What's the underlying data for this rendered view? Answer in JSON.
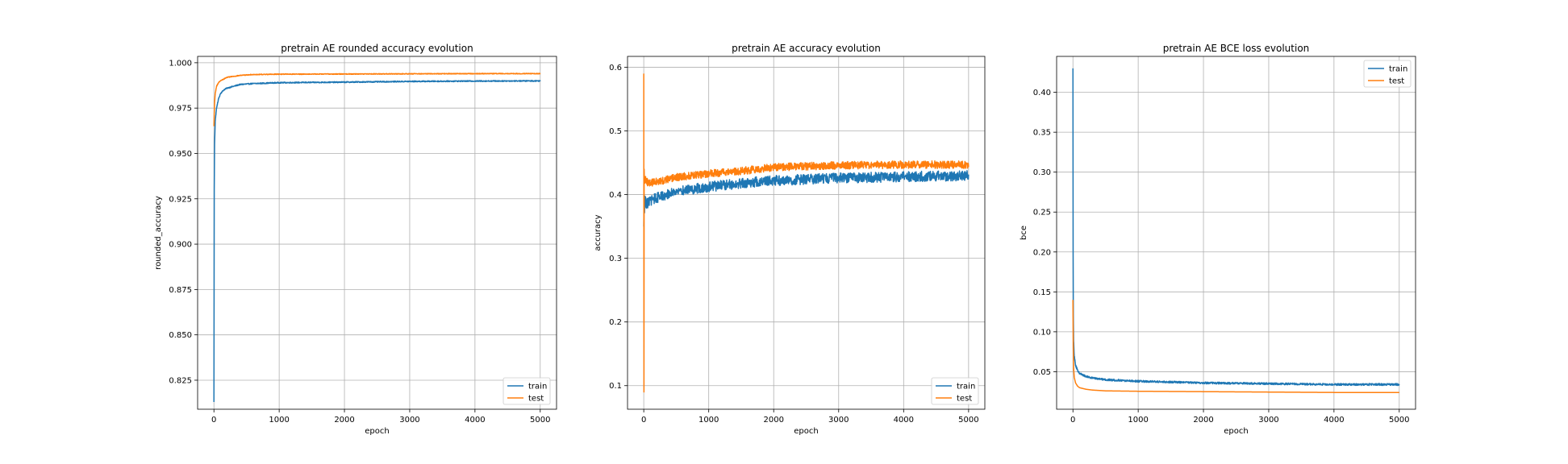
{
  "colors": {
    "train": "#1f77b4",
    "test": "#ff7f0e",
    "grid": "#b0b0b0"
  },
  "chart_data": [
    {
      "type": "line",
      "title": "pretrain AE rounded accuracy evolution",
      "xlabel": "epoch",
      "ylabel": "rounded_accuracy",
      "xlim": [
        -250,
        5250
      ],
      "ylim": [
        0.809,
        1.0035
      ],
      "xticks": [
        0,
        1000,
        2000,
        3000,
        4000,
        5000
      ],
      "yticks": [
        0.825,
        0.85,
        0.875,
        0.9,
        0.925,
        0.95,
        0.975,
        1.0
      ],
      "ytick_labels": [
        "0.825",
        "0.850",
        "0.875",
        "0.900",
        "0.925",
        "0.950",
        "0.975",
        "1.000"
      ],
      "grid": true,
      "legend": "lower-right",
      "series": [
        {
          "name": "train",
          "noise": 0.0003,
          "x": [
            0,
            5,
            10,
            20,
            40,
            70,
            100,
            150,
            200,
            300,
            400,
            600,
            1000,
            2000,
            3000,
            4000,
            5000
          ],
          "y": [
            0.813,
            0.93,
            0.955,
            0.968,
            0.975,
            0.98,
            0.983,
            0.985,
            0.986,
            0.987,
            0.988,
            0.9885,
            0.989,
            0.9893,
            0.9897,
            0.9899,
            0.99
          ]
        },
        {
          "name": "test",
          "noise": 0.0002,
          "x": [
            0,
            5,
            10,
            20,
            40,
            70,
            100,
            150,
            200,
            300,
            400,
            600,
            1000,
            2000,
            3000,
            4000,
            5000
          ],
          "y": [
            0.965,
            0.972,
            0.978,
            0.983,
            0.987,
            0.989,
            0.99,
            0.991,
            0.992,
            0.9925,
            0.993,
            0.9935,
            0.9937,
            0.9938,
            0.9939,
            0.994,
            0.994
          ]
        }
      ]
    },
    {
      "type": "line",
      "title": "pretrain AE accuracy evolution",
      "xlabel": "epoch",
      "ylabel": "accuracy",
      "xlim": [
        -250,
        5250
      ],
      "ylim": [
        0.063,
        0.617
      ],
      "xticks": [
        0,
        1000,
        2000,
        3000,
        4000,
        5000
      ],
      "yticks": [
        0.1,
        0.2,
        0.3,
        0.4,
        0.5,
        0.6
      ],
      "ytick_labels": [
        "0.1",
        "0.2",
        "0.3",
        "0.4",
        "0.5",
        "0.6"
      ],
      "grid": true,
      "legend": "lower-right",
      "series": [
        {
          "name": "train",
          "noise": 0.008,
          "x": [
            0,
            5,
            10,
            20,
            40,
            100,
            200,
            500,
            1000,
            1500,
            2000,
            3000,
            4000,
            5000
          ],
          "y": [
            0.35,
            0.4,
            0.375,
            0.39,
            0.385,
            0.39,
            0.395,
            0.405,
            0.412,
            0.418,
            0.422,
            0.426,
            0.428,
            0.43
          ]
        },
        {
          "name": "test",
          "noise": 0.006,
          "x": [
            0,
            3,
            6,
            10,
            20,
            50,
            100,
            200,
            500,
            1000,
            1500,
            2000,
            3000,
            4000,
            5000
          ],
          "y": [
            0.59,
            0.09,
            0.44,
            0.42,
            0.425,
            0.42,
            0.418,
            0.42,
            0.427,
            0.433,
            0.437,
            0.443,
            0.446,
            0.447,
            0.447
          ]
        }
      ]
    },
    {
      "type": "line",
      "title": "pretrain AE BCE loss evolution",
      "xlabel": "epoch",
      "ylabel": "bce",
      "xlim": [
        -250,
        5250
      ],
      "ylim": [
        0.003,
        0.445
      ],
      "xticks": [
        0,
        1000,
        2000,
        3000,
        4000,
        5000
      ],
      "yticks": [
        0.05,
        0.1,
        0.15,
        0.2,
        0.25,
        0.3,
        0.35,
        0.4
      ],
      "ytick_labels": [
        "0.05",
        "0.10",
        "0.15",
        "0.20",
        "0.25",
        "0.30",
        "0.35",
        "0.40"
      ],
      "grid": true,
      "legend": "upper-right",
      "series": [
        {
          "name": "train",
          "noise": 0.0012,
          "x": [
            0,
            3,
            6,
            10,
            20,
            40,
            70,
            100,
            150,
            200,
            300,
            500,
            1000,
            2000,
            3000,
            4000,
            5000
          ],
          "y": [
            0.43,
            0.2,
            0.12,
            0.09,
            0.07,
            0.058,
            0.052,
            0.048,
            0.046,
            0.044,
            0.042,
            0.04,
            0.038,
            0.036,
            0.035,
            0.034,
            0.034
          ]
        },
        {
          "name": "test",
          "noise": 0,
          "x": [
            0,
            5,
            10,
            20,
            40,
            70,
            100,
            150,
            200,
            300,
            500,
            1000,
            2000,
            3000,
            4000,
            5000
          ],
          "y": [
            0.14,
            0.08,
            0.055,
            0.043,
            0.036,
            0.032,
            0.03,
            0.029,
            0.028,
            0.027,
            0.026,
            0.0255,
            0.025,
            0.0245,
            0.024,
            0.024
          ]
        }
      ]
    }
  ]
}
